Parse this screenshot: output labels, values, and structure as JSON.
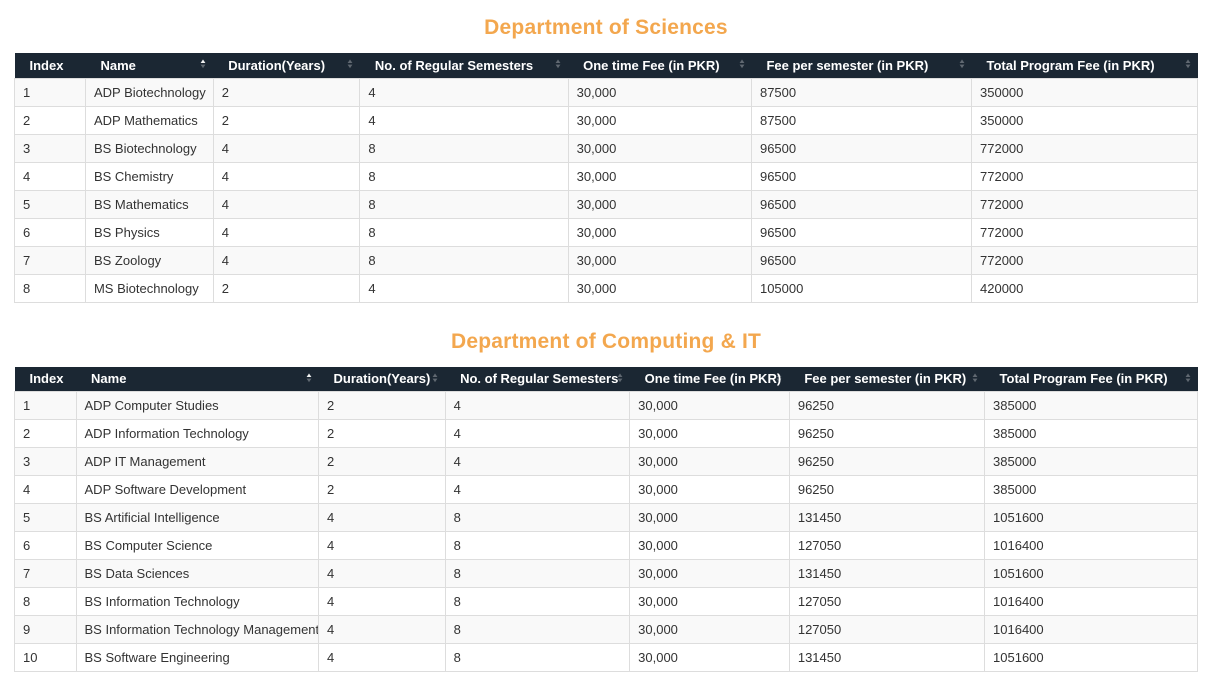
{
  "icons": {
    "sort_up": "▲",
    "sort_down": "▼"
  },
  "colors": {
    "title_orange": "#f3a74e",
    "header_bg": "#1b2733",
    "header_text": "#ffffff",
    "row_stripe": "#f9f9f9",
    "cell_text": "#333333",
    "cell_border": "#dddddd"
  },
  "sections": [
    {
      "title": "Department of Sciences",
      "table": {
        "columns": [
          {
            "key": "index",
            "label": "Index",
            "sortable": false,
            "sort": "none"
          },
          {
            "key": "name",
            "label": "Name",
            "sortable": true,
            "sort": "asc"
          },
          {
            "key": "duration",
            "label": "Duration(Years)",
            "sortable": true,
            "sort": "none"
          },
          {
            "key": "semesters",
            "label": "No. of Regular Semesters",
            "sortable": true,
            "sort": "none"
          },
          {
            "key": "one-time-fee",
            "label": "One time Fee (in PKR)",
            "sortable": true,
            "sort": "none"
          },
          {
            "key": "fee-per-semester",
            "label": "Fee per semester (in PKR)",
            "sortable": true,
            "sort": "none"
          },
          {
            "key": "total-fee",
            "label": "Total Program Fee (in PKR)",
            "sortable": true,
            "sort": "none"
          }
        ],
        "rows": [
          [
            "1",
            "ADP Biotechnology",
            "2",
            "4",
            "30,000",
            "87500",
            "350000"
          ],
          [
            "2",
            "ADP Mathematics",
            "2",
            "4",
            "30,000",
            "87500",
            "350000"
          ],
          [
            "3",
            "BS Biotechnology",
            "4",
            "8",
            "30,000",
            "96500",
            "772000"
          ],
          [
            "4",
            "BS Chemistry",
            "4",
            "8",
            "30,000",
            "96500",
            "772000"
          ],
          [
            "5",
            "BS Mathematics",
            "4",
            "8",
            "30,000",
            "96500",
            "772000"
          ],
          [
            "6",
            "BS Physics",
            "4",
            "8",
            "30,000",
            "96500",
            "772000"
          ],
          [
            "7",
            "BS Zoology",
            "4",
            "8",
            "30,000",
            "96500",
            "772000"
          ],
          [
            "8",
            "MS Biotechnology",
            "2",
            "4",
            "30,000",
            "105000",
            "420000"
          ]
        ]
      }
    },
    {
      "title": "Department of Computing & IT",
      "table": {
        "columns": [
          {
            "key": "index",
            "label": "Index",
            "sortable": false,
            "sort": "none"
          },
          {
            "key": "name",
            "label": "Name",
            "sortable": true,
            "sort": "asc"
          },
          {
            "key": "duration",
            "label": "Duration(Years)",
            "sortable": true,
            "sort": "none"
          },
          {
            "key": "semesters",
            "label": "No. of Regular Semesters",
            "sortable": true,
            "sort": "none"
          },
          {
            "key": "one-time-fee",
            "label": "One time Fee (in PKR)",
            "sortable": true,
            "sort": "none"
          },
          {
            "key": "fee-per-semester",
            "label": "Fee per semester (in PKR)",
            "sortable": true,
            "sort": "none"
          },
          {
            "key": "total-fee",
            "label": "Total Program Fee (in PKR)",
            "sortable": true,
            "sort": "none"
          }
        ],
        "rows": [
          [
            "1",
            "ADP Computer Studies",
            "2",
            "4",
            "30,000",
            "96250",
            "385000"
          ],
          [
            "2",
            "ADP Information Technology",
            "2",
            "4",
            "30,000",
            "96250",
            "385000"
          ],
          [
            "3",
            "ADP IT Management",
            "2",
            "4",
            "30,000",
            "96250",
            "385000"
          ],
          [
            "4",
            "ADP Software Development",
            "2",
            "4",
            "30,000",
            "96250",
            "385000"
          ],
          [
            "5",
            "BS Artificial Intelligence",
            "4",
            "8",
            "30,000",
            "131450",
            "1051600"
          ],
          [
            "6",
            "BS Computer Science",
            "4",
            "8",
            "30,000",
            "127050",
            "1016400"
          ],
          [
            "7",
            "BS Data Sciences",
            "4",
            "8",
            "30,000",
            "131450",
            "1051600"
          ],
          [
            "8",
            "BS Information Technology",
            "4",
            "8",
            "30,000",
            "127050",
            "1016400"
          ],
          [
            "9",
            "BS Information Technology Management",
            "4",
            "8",
            "30,000",
            "127050",
            "1016400"
          ],
          [
            "10",
            "BS Software Engineering",
            "4",
            "8",
            "30,000",
            "131450",
            "1051600"
          ]
        ]
      }
    }
  ]
}
